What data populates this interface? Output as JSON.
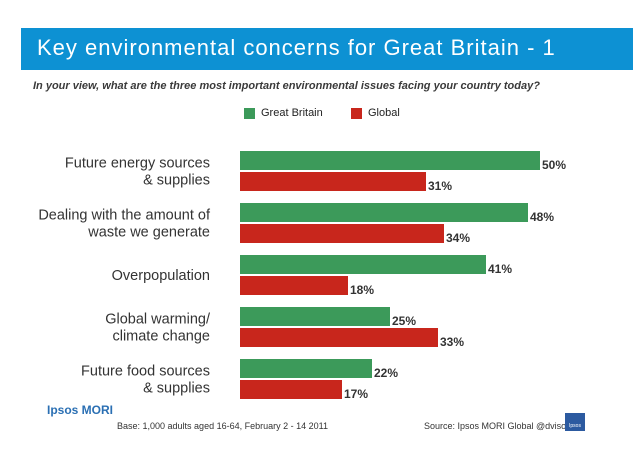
{
  "header": {
    "title": "Key environmental concerns for Great Britain - 1",
    "question": "In your view, what are the three most important environmental issues facing your country today?"
  },
  "legend": {
    "items": [
      {
        "label": "Great Britain",
        "color": "#3c9a5a"
      },
      {
        "label": "Global",
        "color": "#c8261c"
      }
    ]
  },
  "chart_data": {
    "type": "bar",
    "orientation": "horizontal",
    "categories": [
      [
        "Future energy sources",
        "& supplies"
      ],
      [
        "Dealing with the amount of",
        "waste we generate"
      ],
      [
        "Overpopulation"
      ],
      [
        "Global warming/",
        "climate change"
      ],
      [
        "Future food sources",
        "& supplies"
      ]
    ],
    "series": [
      {
        "name": "Great Britain",
        "values": [
          50,
          48,
          41,
          25,
          22
        ],
        "labels": [
          "50%",
          "48%",
          "41%",
          "25%",
          "22%"
        ],
        "color": "#3c9a5a"
      },
      {
        "name": "Global",
        "values": [
          31,
          34,
          18,
          33,
          17
        ],
        "labels": [
          "31%",
          "34%",
          "18%",
          "33%",
          "17%"
        ],
        "color": "#c8261c"
      }
    ],
    "xlim": [
      0,
      50
    ],
    "title": "Key environmental concerns for Great Britain - 1",
    "xlabel": "",
    "ylabel": ""
  },
  "footer": {
    "logo": "Ipsos MORI",
    "base": "Base: 1,000 adults aged 16-64, February 2 - 14 2011",
    "source": "Source: Ipsos MORI Global @dvisor",
    "mark_text": "Ipsos"
  }
}
